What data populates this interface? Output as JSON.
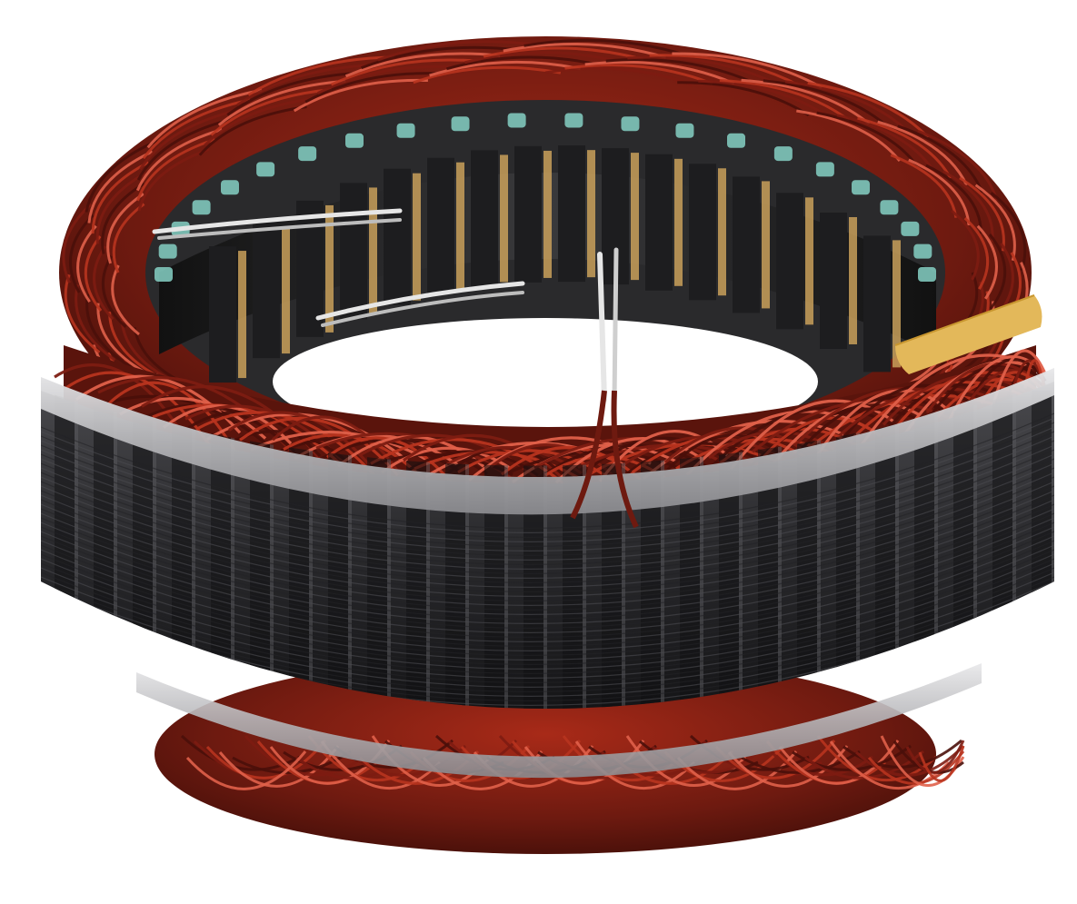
{
  "image": {
    "subject": "alternator-stator",
    "colors": {
      "background": "#ffffff",
      "copper_dark": "#4a0f0a",
      "copper_mid": "#7d1c12",
      "copper_light": "#b8341f",
      "copper_highlight": "#e0604a",
      "lamination_dark": "#1c1c1e",
      "lamination_mid": "#3a3a3d",
      "lamination_edge": "#5a5a5e",
      "silver_band": "#cfcfd1",
      "insulation_teal": "#7fc7bb",
      "insulation_teal_dark": "#4f9b90",
      "slot_tan": "#c9a05a",
      "lead_wire": "#d9d9d9",
      "sleeve_tan": "#e3b85a"
    }
  }
}
